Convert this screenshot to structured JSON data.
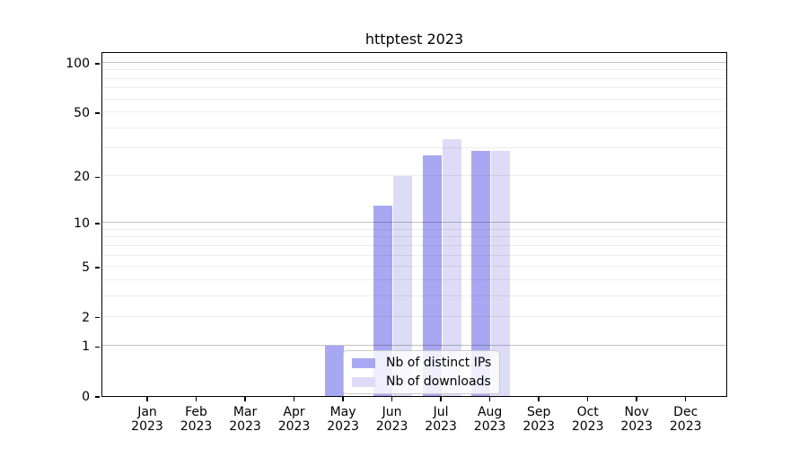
{
  "title": "httptest 2023",
  "legend": {
    "items": [
      {
        "label": "Nb of distinct IPs",
        "color": "#a8a8f2"
      },
      {
        "label": "Nb of downloads",
        "color": "#dcdcf7"
      }
    ]
  },
  "chart_data": {
    "type": "bar",
    "title": "httptest 2023",
    "categories": [
      "Jan",
      "Feb",
      "Mar",
      "Apr",
      "May",
      "Jun",
      "Jul",
      "Aug",
      "Sep",
      "Oct",
      "Nov",
      "Dec"
    ],
    "x_year_label": "2023",
    "series": [
      {
        "name": "Nb of distinct IPs",
        "color": "#a8a8f2",
        "values": [
          0,
          0,
          0,
          0,
          1,
          13,
          27,
          29,
          0,
          0,
          0,
          0
        ]
      },
      {
        "name": "Nb of downloads",
        "color": "#dcdcf7",
        "values": [
          0,
          0,
          0,
          0,
          0,
          20,
          34,
          29,
          0,
          0,
          0,
          0
        ]
      }
    ],
    "yscale": "log(1+x)",
    "y_ticks": [
      0,
      1,
      2,
      5,
      10,
      20,
      50,
      100
    ],
    "y_decade_gridlines": [
      1,
      10,
      100
    ],
    "y_minor_gridlines": [
      2,
      3,
      4,
      5,
      6,
      7,
      8,
      9,
      20,
      30,
      40,
      50,
      60,
      70,
      80,
      90
    ],
    "ylim": [
      0,
      117
    ],
    "grid": "both",
    "legend_position": "lower center",
    "xlabel": "",
    "ylabel": ""
  }
}
